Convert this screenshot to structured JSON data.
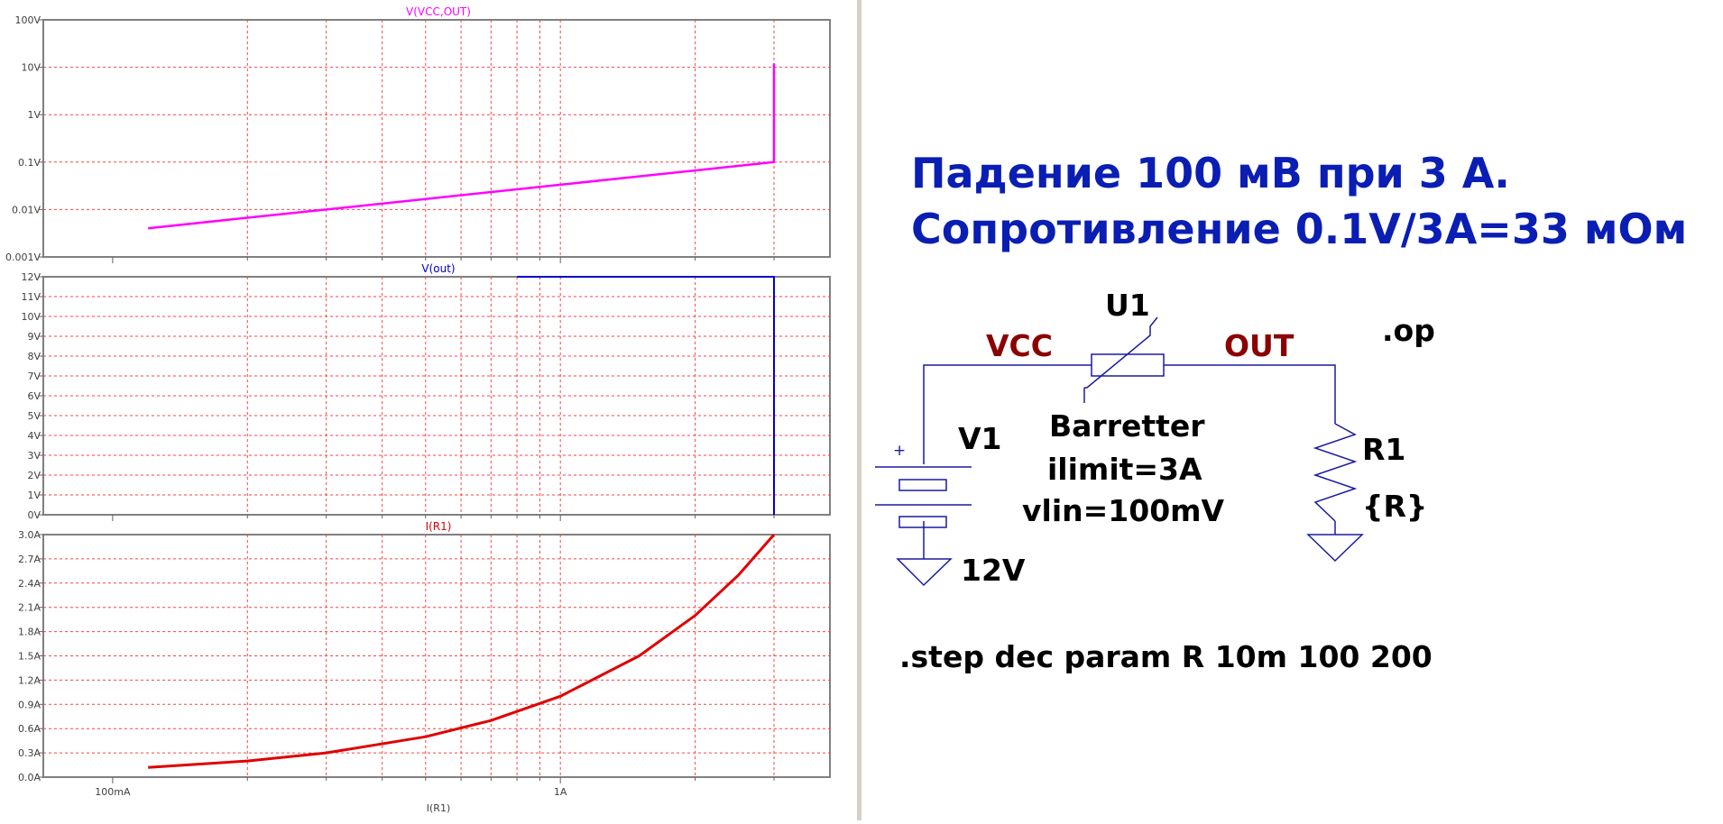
{
  "colors": {
    "v_drop_trace": "#ff00ff",
    "v_out_trace": "#0000cc",
    "i_trace": "#e00000",
    "grid": "#ff4040",
    "schematic_wire": "#1a1aa0",
    "net_label": "#8b0000",
    "heading": "#0a1eb4"
  },
  "chart_data": [
    {
      "type": "line",
      "title": "V(VCC,OUT)",
      "x_scale": "log",
      "y_scale": "log",
      "xlim": [
        0.07,
        4.0
      ],
      "ylim": [
        0.001,
        100
      ],
      "y_ticks": [
        "100V",
        "10V",
        "1V",
        "0.1V",
        "0.01V",
        "0.001V"
      ],
      "x": [
        0.12,
        0.2,
        0.3,
        0.5,
        0.8,
        1.0,
        1.5,
        2.0,
        3.0,
        3.0,
        3.0
      ],
      "y": [
        0.004,
        0.0067,
        0.01,
        0.0167,
        0.0267,
        0.0333,
        0.05,
        0.0667,
        0.1,
        1.0,
        12
      ]
    },
    {
      "type": "line",
      "title": "V(out)",
      "x_scale": "log",
      "y_scale": "linear",
      "xlim": [
        0.07,
        4.0
      ],
      "ylim": [
        0,
        12
      ],
      "y_ticks": [
        "12V",
        "11V",
        "10V",
        "9V",
        "8V",
        "7V",
        "6V",
        "5V",
        "4V",
        "3V",
        "2V",
        "1V",
        "0V"
      ],
      "x": [
        0.8,
        3.0,
        3.0,
        3.0
      ],
      "y": [
        12,
        12,
        11.8,
        0
      ]
    },
    {
      "type": "line",
      "title": "I(R1)",
      "x_scale": "log",
      "y_scale": "linear",
      "xlim": [
        0.07,
        4.0
      ],
      "ylim": [
        0,
        3.0
      ],
      "y_ticks": [
        "3.0A",
        "2.7A",
        "2.4A",
        "2.1A",
        "1.8A",
        "1.5A",
        "1.2A",
        "0.9A",
        "0.6A",
        "0.3A",
        "0.0A"
      ],
      "x_tick_labels": [
        "100mA",
        "1A"
      ],
      "xlabel": "I(R1)",
      "x": [
        0.12,
        0.2,
        0.3,
        0.5,
        0.7,
        1.0,
        1.5,
        2.0,
        2.5,
        3.0
      ],
      "y": [
        0.12,
        0.2,
        0.3,
        0.5,
        0.7,
        1.0,
        1.5,
        2.0,
        2.5,
        3.0
      ]
    }
  ],
  "schematic": {
    "heading_line1": "Падение 100 мВ при 3 А.",
    "heading_line2": "Сопротивление 0.1V/3A=33 мОм",
    "u1_name": "U1",
    "u1_type": "Barretter",
    "u1_param1": "ilimit=3A",
    "u1_param2": "vlin=100mV",
    "net_vcc": "VCC",
    "net_out": "OUT",
    "op_directive": ".op",
    "v1_name": "V1",
    "v1_value": "12V",
    "v1_plus": "+",
    "r1_name": "R1",
    "r1_value": "{R}",
    "step_directive": ".step dec param R 10m 100 200"
  }
}
